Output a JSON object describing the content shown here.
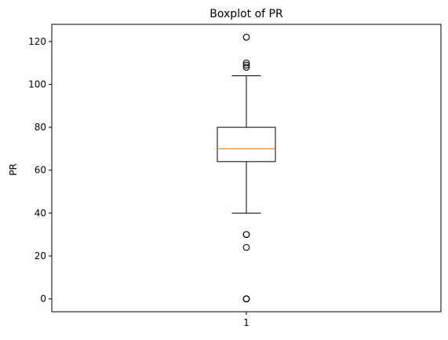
{
  "chart_data": {
    "type": "box",
    "title": "Boxplot of PR",
    "xlabel": "",
    "ylabel": "PR",
    "categories": [
      "1"
    ],
    "ylim": [
      -6,
      128
    ],
    "yticks": [
      0,
      20,
      40,
      60,
      80,
      100,
      120
    ],
    "ytick_labels": [
      "0",
      "20",
      "40",
      "60",
      "80",
      "100",
      "120"
    ],
    "grid": false,
    "legend": "none",
    "boxes": [
      {
        "category": "1",
        "whisker_low": 40,
        "q1": 64,
        "median": 70,
        "q3": 80,
        "whisker_high": 104,
        "outliers": [
          122,
          110,
          109,
          108,
          30,
          30,
          24,
          0,
          0,
          0
        ]
      }
    ],
    "colors": {
      "box": "#000000",
      "median": "#ff7f0e",
      "outlier": "#000000"
    }
  }
}
